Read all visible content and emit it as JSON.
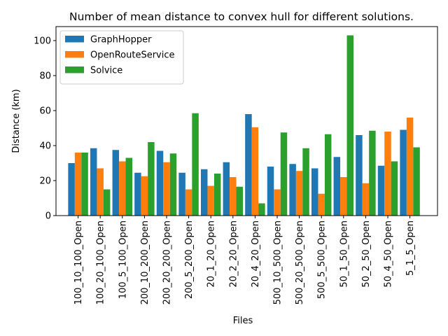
{
  "chart_data": {
    "type": "bar",
    "title": "Number of mean distance to convex hull for different solutions.",
    "xlabel": "Files",
    "ylabel": "Distance (km)",
    "ylim": [
      0,
      108
    ],
    "yticks": [
      0,
      20,
      40,
      60,
      80,
      100
    ],
    "grid": false,
    "legend_position": "top-left",
    "categories": [
      "100_10_100_Open",
      "100_20_100_Open",
      "100_5_100_Open",
      "200_10_200_Open",
      "200_20_200_Open",
      "200_5_200_Open",
      "20_1_20_Open",
      "20_2_20_Open",
      "20_4_20_Open",
      "500_10_500_Open",
      "500_20_500_Open",
      "500_5_500_Open",
      "50_1_50_Open",
      "50_2_50_Open",
      "50_4_50_Open",
      "5_1_5_Open"
    ],
    "series": [
      {
        "name": "GraphHopper",
        "color": "#1f77b4",
        "values": [
          30,
          38.5,
          37.5,
          24.5,
          37,
          24.5,
          26.5,
          30.5,
          58,
          28,
          29.5,
          27,
          33.5,
          46,
          28.5,
          49
        ]
      },
      {
        "name": "OpenRouteService",
        "color": "#ff7f0e",
        "values": [
          36,
          27,
          31,
          22.5,
          30.5,
          15,
          17,
          22,
          50.5,
          15,
          25.5,
          12.5,
          22,
          18.5,
          48,
          56
        ]
      },
      {
        "name": "Solvice",
        "color": "#2ca02c",
        "values": [
          36,
          15,
          33,
          42,
          35.5,
          58.5,
          24,
          16.5,
          7,
          47.5,
          38.5,
          46.5,
          103,
          48.5,
          31,
          39
        ]
      }
    ]
  }
}
